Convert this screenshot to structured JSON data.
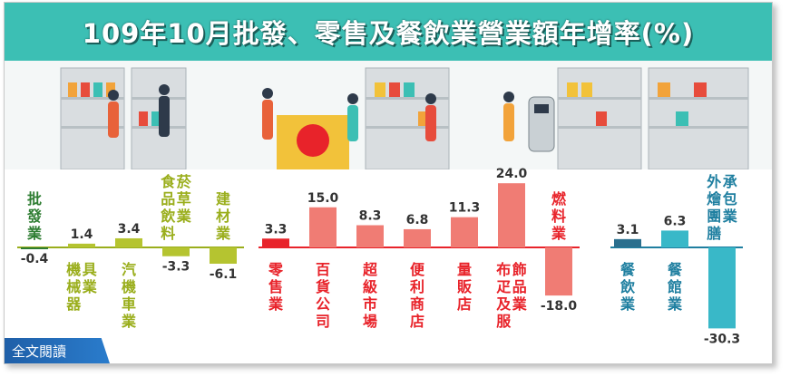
{
  "title": "109年10月批發、零售及餐飲業營業額年增率(%)",
  "read_more_label": "全文閱讀",
  "chart_data": {
    "type": "bar",
    "title": "109年10月批發、零售及餐飲業營業額年增率(%)",
    "xlabel": "",
    "ylabel": "",
    "groups": [
      {
        "name": "批發業",
        "color": "#9aae1c",
        "items": [
          {
            "label": "批發業",
            "value": -0.4,
            "color": "#2e7d32",
            "total": true
          },
          {
            "label": "機械器具業",
            "value": 1.4,
            "color": "#b5c430"
          },
          {
            "label": "汽機車業",
            "value": 3.4,
            "color": "#b5c430"
          },
          {
            "label": "食品飲料菸草業",
            "value": -3.3,
            "color": "#b5c430"
          },
          {
            "label": "建材業",
            "value": -6.1,
            "color": "#b5c430"
          }
        ]
      },
      {
        "name": "零售業",
        "color": "#e8232a",
        "items": [
          {
            "label": "零售業",
            "value": 3.3,
            "color": "#e8232a",
            "total": true
          },
          {
            "label": "百貨公司",
            "value": 15.0,
            "color": "#f07c74"
          },
          {
            "label": "超級市場",
            "value": 8.3,
            "color": "#f07c74"
          },
          {
            "label": "便利商店",
            "value": 6.8,
            "color": "#f07c74"
          },
          {
            "label": "量販店",
            "value": 11.3,
            "color": "#f07c74"
          },
          {
            "label": "布疋及服飾品業",
            "value": 24.0,
            "color": "#f07c74"
          },
          {
            "label": "燃料業",
            "value": -18.0,
            "color": "#f07c74"
          }
        ]
      },
      {
        "name": "餐飲業",
        "color": "#1f7fa0",
        "items": [
          {
            "label": "餐飲業",
            "value": 3.1,
            "color": "#2a6f8e",
            "total": true
          },
          {
            "label": "餐館業",
            "value": 6.3,
            "color": "#39b8c8"
          },
          {
            "label": "外燴團膳承包業",
            "value": -30.3,
            "color": "#39b8c8"
          }
        ]
      }
    ]
  },
  "colors": {
    "title_bg": "#3cbfb4",
    "wholesale_label": "#9aae1c",
    "retail_label": "#e8232a",
    "food_label": "#1f7fa0"
  }
}
